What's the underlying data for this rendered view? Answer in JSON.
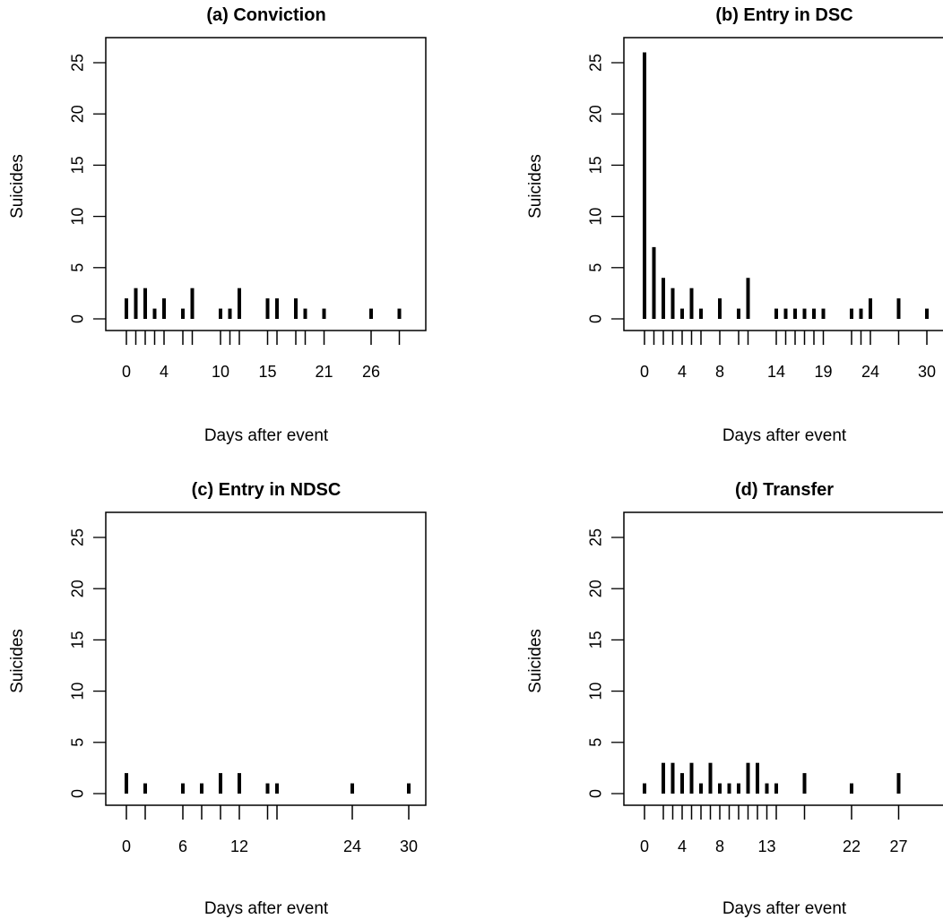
{
  "chart_data": [
    {
      "type": "bar",
      "title": "(a) Conviction",
      "xlabel": "Days after event",
      "ylabel": "Suicides",
      "ylim": [
        0,
        26
      ],
      "yticks": [
        0,
        5,
        10,
        15,
        20,
        25
      ],
      "ytick_labels": [
        "0",
        "5",
        "10",
        "15",
        "20",
        "25"
      ],
      "x": [
        0,
        1,
        2,
        3,
        4,
        6,
        7,
        10,
        11,
        12,
        15,
        16,
        18,
        19,
        21,
        26,
        29
      ],
      "values": [
        2,
        3,
        3,
        1,
        2,
        1,
        3,
        1,
        1,
        3,
        2,
        2,
        2,
        1,
        1,
        1,
        1
      ],
      "xtick_labels": [
        "0",
        "4",
        "10",
        "15",
        "21",
        "26"
      ],
      "xtick_label_positions": [
        0,
        4,
        10,
        15,
        21,
        26
      ],
      "grid": false
    },
    {
      "type": "bar",
      "title": "(b) Entry in DSC",
      "xlabel": "Days after event",
      "ylabel": "Suicides",
      "ylim": [
        0,
        26
      ],
      "yticks": [
        0,
        5,
        10,
        15,
        20,
        25
      ],
      "ytick_labels": [
        "0",
        "5",
        "10",
        "15",
        "20",
        "25"
      ],
      "x": [
        0,
        1,
        2,
        3,
        4,
        5,
        6,
        8,
        10,
        11,
        14,
        15,
        16,
        17,
        18,
        19,
        22,
        23,
        24,
        27,
        30
      ],
      "values": [
        26,
        7,
        4,
        3,
        1,
        3,
        1,
        2,
        1,
        4,
        1,
        1,
        1,
        1,
        1,
        1,
        1,
        1,
        2,
        2,
        1
      ],
      "xtick_labels": [
        "0",
        "4",
        "8",
        "14",
        "19",
        "24",
        "30"
      ],
      "xtick_label_positions": [
        0,
        4,
        8,
        14,
        19,
        24,
        30
      ],
      "grid": false
    },
    {
      "type": "bar",
      "title": "(c) Entry in NDSC",
      "xlabel": "Days after event",
      "ylabel": "Suicides",
      "ylim": [
        0,
        26
      ],
      "yticks": [
        0,
        5,
        10,
        15,
        20,
        25
      ],
      "ytick_labels": [
        "0",
        "5",
        "10",
        "15",
        "20",
        "25"
      ],
      "x": [
        0,
        2,
        6,
        8,
        10,
        12,
        15,
        16,
        24,
        30
      ],
      "values": [
        2,
        1,
        1,
        1,
        2,
        2,
        1,
        1,
        1,
        1
      ],
      "xtick_labels": [
        "0",
        "6",
        "12",
        "24",
        "30"
      ],
      "xtick_label_positions": [
        0,
        6,
        12,
        24,
        30
      ],
      "grid": false
    },
    {
      "type": "bar",
      "title": "(d) Transfer",
      "xlabel": "Days after event",
      "ylabel": "Suicides",
      "ylim": [
        0,
        26
      ],
      "yticks": [
        0,
        5,
        10,
        15,
        20,
        25
      ],
      "ytick_labels": [
        "0",
        "5",
        "10",
        "15",
        "20",
        "25"
      ],
      "x": [
        0,
        2,
        3,
        4,
        5,
        6,
        7,
        8,
        9,
        10,
        11,
        12,
        13,
        14,
        17,
        22,
        27
      ],
      "values": [
        1,
        3,
        3,
        2,
        3,
        1,
        3,
        1,
        1,
        1,
        3,
        3,
        1,
        1,
        2,
        1,
        2
      ],
      "xtick_labels": [
        "0",
        "4",
        "8",
        "13",
        "22",
        "27"
      ],
      "xtick_label_positions": [
        0,
        4,
        8,
        13,
        22,
        27
      ],
      "grid": false
    }
  ]
}
